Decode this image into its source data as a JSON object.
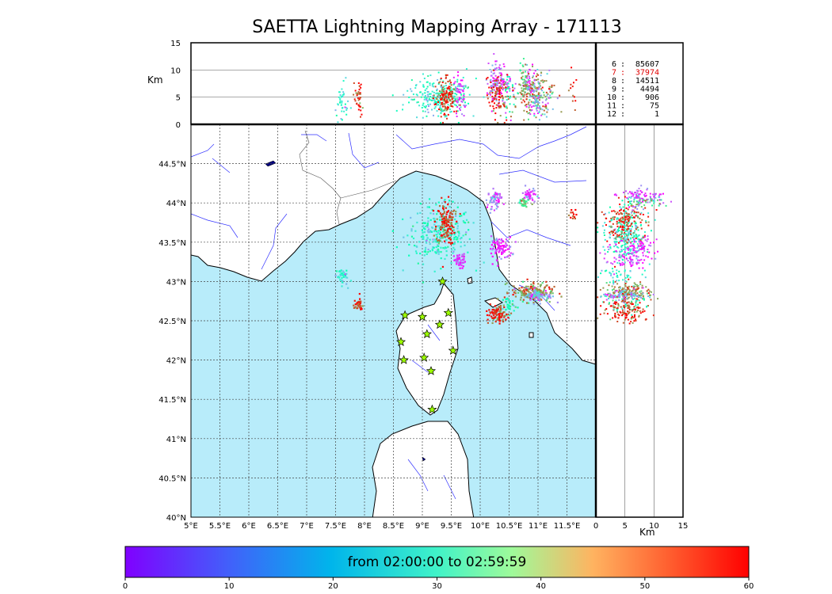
{
  "title": "SAETTA Lightning Mapping Array - 171113",
  "height_axis": {
    "label": "Km",
    "ticks": [
      "0",
      "5",
      "10",
      "15"
    ]
  },
  "map_axis": {
    "lon_ticks": [
      "5°E",
      "5.5°E",
      "6°E",
      "6.5°E",
      "7°E",
      "7.5°E",
      "8°E",
      "8.5°E",
      "9°E",
      "9.5°E",
      "10°E",
      "10.5°E",
      "11°E",
      "11.5°E"
    ],
    "lat_ticks": [
      "40°N",
      "40.5°N",
      "41°N",
      "41.5°N",
      "42°N",
      "42.5°N",
      "43°N",
      "43.5°N",
      "44°N",
      "44.5°N"
    ],
    "lon_range": [
      5,
      12
    ],
    "lat_range": [
      40,
      45
    ]
  },
  "side_axis": {
    "label": "Km",
    "ticks": [
      "0",
      "5",
      "10",
      "15"
    ]
  },
  "station_counts": [
    {
      "stations": "6",
      "count": "85607",
      "color": "#000000"
    },
    {
      "stations": "7",
      "count": "37974",
      "color": "#e00000"
    },
    {
      "stations": "8",
      "count": "14511",
      "color": "#000000"
    },
    {
      "stations": "9",
      "count": "4494",
      "color": "#000000"
    },
    {
      "stations": "10",
      "count": "906",
      "color": "#000000"
    },
    {
      "stations": "11",
      "count": "75",
      "color": "#000000"
    },
    {
      "stations": "12",
      "count": "1",
      "color": "#000000"
    }
  ],
  "colorbar": {
    "label": "from 02:00:00 to 02:59:59",
    "ticks": [
      "0",
      "10",
      "20",
      "30",
      "40",
      "50",
      "60"
    ],
    "range": [
      0,
      60
    ],
    "colormap": "rainbow"
  },
  "colors": {
    "sea": "#b8ecfa",
    "land": "#ffffff",
    "rivers": "#3030ff",
    "station_marker": "#9dff00"
  },
  "stations_lonlat": [
    [
      9.35,
      43.0
    ],
    [
      9.45,
      42.6
    ],
    [
      9.3,
      42.45
    ],
    [
      9.0,
      42.55
    ],
    [
      8.7,
      42.57
    ],
    [
      9.08,
      42.33
    ],
    [
      8.63,
      42.23
    ],
    [
      9.53,
      42.12
    ],
    [
      9.03,
      42.03
    ],
    [
      8.68,
      42.0
    ],
    [
      9.15,
      41.86
    ],
    [
      9.17,
      41.37
    ]
  ],
  "lightning_clusters": [
    {
      "lon": 9.3,
      "lat": 43.6,
      "alt": 5.2,
      "time": 25,
      "count": 260,
      "slon": 0.28,
      "slat": 0.18
    },
    {
      "lon": 9.4,
      "lat": 43.75,
      "alt": 4.8,
      "time": 55,
      "count": 140,
      "slon": 0.08,
      "slat": 0.14
    },
    {
      "lon": 9.65,
      "lat": 43.25,
      "alt": 5.5,
      "time": 3,
      "count": 50,
      "slon": 0.05,
      "slat": 0.05
    },
    {
      "lon": 10.35,
      "lat": 43.42,
      "alt": 7.5,
      "time": 3,
      "count": 90,
      "slon": 0.1,
      "slat": 0.07
    },
    {
      "lon": 10.25,
      "lat": 44.05,
      "alt": 8,
      "time": 8,
      "count": 60,
      "slon": 0.06,
      "slat": 0.06
    },
    {
      "lon": 10.85,
      "lat": 44.1,
      "alt": 8,
      "time": 4,
      "count": 45,
      "slon": 0.06,
      "slat": 0.05
    },
    {
      "lon": 10.75,
      "lat": 44.0,
      "alt": 8,
      "time": 38,
      "count": 30,
      "slon": 0.05,
      "slat": 0.04
    },
    {
      "lon": 11.6,
      "lat": 43.85,
      "alt": 7,
      "time": 58,
      "count": 12,
      "slon": 0.03,
      "slat": 0.04
    },
    {
      "lon": 10.9,
      "lat": 42.87,
      "alt": 5.5,
      "time": 48,
      "count": 180,
      "slon": 0.18,
      "slat": 0.06
    },
    {
      "lon": 11.0,
      "lat": 42.82,
      "alt": 5,
      "time": 14,
      "count": 80,
      "slon": 0.12,
      "slat": 0.04
    },
    {
      "lon": 10.3,
      "lat": 42.58,
      "alt": 5.2,
      "time": 57,
      "count": 90,
      "slon": 0.09,
      "slat": 0.06
    },
    {
      "lon": 10.5,
      "lat": 42.7,
      "alt": 5,
      "time": 30,
      "count": 30,
      "slon": 0.06,
      "slat": 0.05
    },
    {
      "lon": 7.6,
      "lat": 43.07,
      "alt": 3.5,
      "time": 22,
      "count": 40,
      "slon": 0.05,
      "slat": 0.06
    },
    {
      "lon": 7.9,
      "lat": 42.7,
      "alt": 4.5,
      "time": 58,
      "count": 40,
      "slon": 0.04,
      "slat": 0.04
    }
  ]
}
